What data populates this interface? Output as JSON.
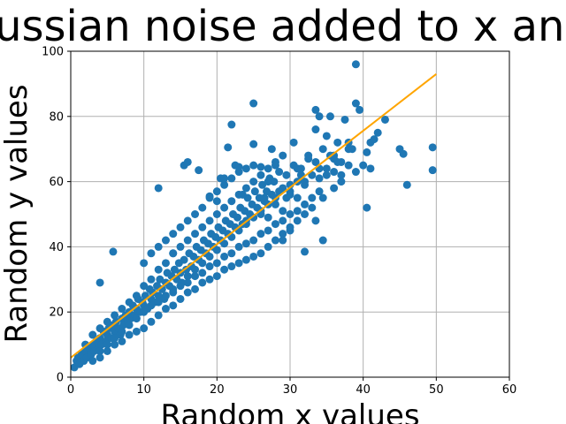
{
  "chart_data": {
    "type": "scatter",
    "title": "Gaussian noise added to x and y",
    "xlabel": "Random x values",
    "ylabel": "Random y values",
    "xlim": [
      0,
      60
    ],
    "ylim": [
      0,
      100
    ],
    "xticks": [
      0,
      10,
      20,
      30,
      40,
      50,
      60
    ],
    "yticks": [
      0,
      20,
      40,
      60,
      80,
      100
    ],
    "grid": true,
    "colors": {
      "points": "#1f77b4",
      "fit_line": "#ffa500",
      "grid": "#b0b0b0"
    },
    "fit_line": {
      "x": [
        0,
        50
      ],
      "y": [
        6,
        93
      ]
    },
    "points": [
      [
        0.5,
        3
      ],
      [
        0.8,
        5
      ],
      [
        1,
        6
      ],
      [
        1.2,
        4
      ],
      [
        1.5,
        7
      ],
      [
        1.8,
        5
      ],
      [
        2,
        8
      ],
      [
        2.2,
        6
      ],
      [
        2.5,
        9
      ],
      [
        2.8,
        7
      ],
      [
        3,
        10
      ],
      [
        3.2,
        8
      ],
      [
        3.5,
        11
      ],
      [
        3.8,
        9
      ],
      [
        4,
        12
      ],
      [
        4.2,
        10
      ],
      [
        4.5,
        14
      ],
      [
        4.8,
        11
      ],
      [
        5,
        13
      ],
      [
        5.2,
        15
      ],
      [
        5.5,
        12
      ],
      [
        5.8,
        16
      ],
      [
        6,
        14
      ],
      [
        6.2,
        17
      ],
      [
        6.5,
        15
      ],
      [
        6.8,
        13
      ],
      [
        7,
        18
      ],
      [
        7.2,
        16
      ],
      [
        7.5,
        19
      ],
      [
        7.8,
        17
      ],
      [
        8,
        20
      ],
      [
        8.2,
        18
      ],
      [
        8.5,
        22
      ],
      [
        8.8,
        19
      ],
      [
        9,
        21
      ],
      [
        9.2,
        24
      ],
      [
        9.5,
        20
      ],
      [
        9.8,
        23
      ],
      [
        10,
        22
      ],
      [
        10.2,
        25
      ],
      [
        10.5,
        21
      ],
      [
        10.8,
        27
      ],
      [
        11,
        24
      ],
      [
        11.2,
        26
      ],
      [
        11.5,
        23
      ],
      [
        11.8,
        28
      ],
      [
        12,
        25
      ],
      [
        12.2,
        30
      ],
      [
        12.5,
        27
      ],
      [
        12.8,
        24
      ],
      [
        13,
        29
      ],
      [
        13.2,
        32
      ],
      [
        13.5,
        28
      ],
      [
        13.8,
        31
      ],
      [
        14,
        27
      ],
      [
        14.2,
        33
      ],
      [
        14.5,
        30
      ],
      [
        14.8,
        35
      ],
      [
        15,
        32
      ],
      [
        15.2,
        29
      ],
      [
        15.5,
        36
      ],
      [
        15.8,
        33
      ],
      [
        16,
        31
      ],
      [
        16.2,
        38
      ],
      [
        16.5,
        34
      ],
      [
        16.8,
        37
      ],
      [
        17,
        33
      ],
      [
        17.2,
        40
      ],
      [
        17.5,
        36
      ],
      [
        17.8,
        39
      ],
      [
        18,
        35
      ],
      [
        18.2,
        42
      ],
      [
        18.5,
        38
      ],
      [
        18.8,
        41
      ],
      [
        19,
        37
      ],
      [
        19.2,
        44
      ],
      [
        19.5,
        40
      ],
      [
        19.8,
        43
      ],
      [
        20,
        39
      ],
      [
        20.2,
        46
      ],
      [
        20.5,
        42
      ],
      [
        20.8,
        45
      ],
      [
        21,
        41
      ],
      [
        21.2,
        48
      ],
      [
        21.5,
        44
      ],
      [
        21.8,
        47
      ],
      [
        22,
        43
      ],
      [
        22.2,
        50
      ],
      [
        22.5,
        46
      ],
      [
        22.8,
        49
      ],
      [
        23,
        45
      ],
      [
        23.2,
        52
      ],
      [
        23.5,
        47
      ],
      [
        23.8,
        51
      ],
      [
        24,
        48
      ],
      [
        24.2,
        55
      ],
      [
        24.5,
        50
      ],
      [
        24.8,
        53
      ],
      [
        25,
        49
      ],
      [
        25.2,
        57
      ],
      [
        25.5,
        52
      ],
      [
        25.8,
        55
      ],
      [
        26,
        51
      ],
      [
        26.2,
        59
      ],
      [
        26.5,
        54
      ],
      [
        26.8,
        57
      ],
      [
        27,
        53
      ],
      [
        27.2,
        61
      ],
      [
        27.5,
        56
      ],
      [
        27.8,
        60
      ],
      [
        28,
        55
      ],
      [
        28.5,
        63
      ],
      [
        29,
        58
      ],
      [
        29.5,
        62
      ],
      [
        30,
        57
      ],
      [
        30.5,
        65
      ],
      [
        31,
        60
      ],
      [
        31.5,
        64
      ],
      [
        32,
        59
      ],
      [
        32.5,
        67
      ],
      [
        33,
        62
      ],
      [
        33.5,
        66
      ],
      [
        34,
        61
      ],
      [
        34.5,
        70
      ],
      [
        35,
        64
      ],
      [
        35.5,
        68
      ],
      [
        36,
        63
      ],
      [
        36.5,
        72
      ],
      [
        37,
        66
      ],
      [
        38,
        70
      ],
      [
        3,
        5
      ],
      [
        4,
        8
      ],
      [
        5,
        10
      ],
      [
        6,
        12
      ],
      [
        7,
        14
      ],
      [
        8,
        16
      ],
      [
        9,
        18
      ],
      [
        10,
        20
      ],
      [
        11,
        22
      ],
      [
        12,
        23
      ],
      [
        13,
        25
      ],
      [
        14,
        26
      ],
      [
        15,
        28
      ],
      [
        16,
        29
      ],
      [
        17,
        31
      ],
      [
        18,
        32
      ],
      [
        19,
        34
      ],
      [
        20,
        35
      ],
      [
        21,
        37
      ],
      [
        22,
        38
      ],
      [
        23,
        40
      ],
      [
        24,
        41
      ],
      [
        25,
        42
      ],
      [
        26,
        44
      ],
      [
        27,
        45
      ],
      [
        28,
        47
      ],
      [
        29,
        48
      ],
      [
        30,
        50
      ],
      [
        31,
        51
      ],
      [
        32,
        53
      ],
      [
        2,
        10
      ],
      [
        3,
        13
      ],
      [
        4,
        15
      ],
      [
        5,
        17
      ],
      [
        6,
        19
      ],
      [
        7,
        21
      ],
      [
        8,
        23
      ],
      [
        9,
        25
      ],
      [
        10,
        28
      ],
      [
        11,
        30
      ],
      [
        12,
        33
      ],
      [
        13,
        35
      ],
      [
        14,
        38
      ],
      [
        15,
        40
      ],
      [
        16,
        42
      ],
      [
        17,
        44
      ],
      [
        18,
        46
      ],
      [
        19,
        48
      ],
      [
        20,
        50
      ],
      [
        21,
        52
      ],
      [
        22,
        54
      ],
      [
        23,
        56
      ],
      [
        24,
        58
      ],
      [
        25,
        60
      ],
      [
        26,
        62
      ],
      [
        27,
        64
      ],
      [
        28,
        66
      ],
      [
        29,
        68
      ],
      [
        10,
        35
      ],
      [
        11,
        38
      ],
      [
        12,
        40
      ],
      [
        13,
        42
      ],
      [
        14,
        44
      ],
      [
        15,
        46
      ],
      [
        16,
        48
      ],
      [
        17,
        50
      ],
      [
        18,
        52
      ],
      [
        19,
        55
      ],
      [
        20,
        57
      ],
      [
        21,
        59
      ],
      [
        22,
        61
      ],
      [
        23,
        63
      ],
      [
        24,
        64
      ],
      [
        25,
        65
      ],
      [
        5.8,
        38.5
      ],
      [
        4,
        29
      ],
      [
        12,
        58
      ],
      [
        14,
        38
      ],
      [
        15.5,
        65
      ],
      [
        16,
        66
      ],
      [
        17.5,
        63.5
      ],
      [
        19,
        55.5
      ],
      [
        20,
        54
      ],
      [
        20.5,
        61
      ],
      [
        21,
        61
      ],
      [
        21.5,
        70.5
      ],
      [
        22,
        77.5
      ],
      [
        22.5,
        65
      ],
      [
        23,
        64.5
      ],
      [
        23.5,
        56
      ],
      [
        25,
        84
      ],
      [
        25,
        71.5
      ],
      [
        26,
        64.5
      ],
      [
        26.5,
        55
      ],
      [
        27,
        60
      ],
      [
        27.5,
        70
      ],
      [
        28,
        65
      ],
      [
        28.5,
        57
      ],
      [
        29,
        42
      ],
      [
        29.5,
        55
      ],
      [
        30,
        59
      ],
      [
        30,
        45
      ],
      [
        30.5,
        72
      ],
      [
        31,
        64
      ],
      [
        31.5,
        62
      ],
      [
        32,
        38.5
      ],
      [
        32.5,
        68
      ],
      [
        33,
        52
      ],
      [
        33.5,
        48
      ],
      [
        33.5,
        76
      ],
      [
        33.5,
        82
      ],
      [
        34,
        80
      ],
      [
        34.5,
        55
      ],
      [
        34.5,
        42
      ],
      [
        35,
        74
      ],
      [
        35.5,
        80
      ],
      [
        36,
        67
      ],
      [
        36.5,
        66
      ],
      [
        37,
        62
      ],
      [
        37.5,
        79
      ],
      [
        38,
        72
      ],
      [
        38.5,
        70
      ],
      [
        39,
        63
      ],
      [
        39,
        96
      ],
      [
        39,
        84
      ],
      [
        39.5,
        82
      ],
      [
        40,
        65
      ],
      [
        40.5,
        52
      ],
      [
        40.5,
        69
      ],
      [
        41,
        64
      ],
      [
        41,
        72
      ],
      [
        41.5,
        73
      ],
      [
        42,
        75
      ],
      [
        43,
        79
      ],
      [
        45,
        70
      ],
      [
        45.5,
        68.5
      ],
      [
        46,
        59
      ],
      [
        49.5,
        63.5
      ],
      [
        49.5,
        70.5
      ],
      [
        38,
        65
      ],
      [
        37,
        60
      ],
      [
        36,
        58
      ],
      [
        35,
        62
      ],
      [
        34,
        57
      ],
      [
        33,
        55
      ],
      [
        32,
        50
      ],
      [
        31,
        48
      ],
      [
        30,
        46
      ],
      [
        29,
        44
      ],
      [
        28,
        42
      ],
      [
        27,
        40
      ],
      [
        26,
        38
      ],
      [
        25,
        37
      ],
      [
        24,
        36
      ],
      [
        23,
        35
      ],
      [
        22,
        34
      ],
      [
        21,
        33
      ],
      [
        20,
        31
      ],
      [
        19,
        30
      ],
      [
        18,
        29
      ],
      [
        17,
        27
      ],
      [
        16,
        26
      ],
      [
        15,
        24
      ],
      [
        14,
        22
      ],
      [
        13,
        21
      ],
      [
        12,
        19
      ],
      [
        11,
        17
      ],
      [
        10,
        15
      ],
      [
        9,
        14
      ],
      [
        8,
        13
      ],
      [
        7,
        11
      ],
      [
        6,
        10
      ],
      [
        5,
        8
      ],
      [
        4,
        6
      ],
      [
        24,
        47
      ],
      [
        26,
        50
      ],
      [
        28,
        53
      ],
      [
        30,
        56
      ],
      [
        32,
        60
      ],
      [
        34,
        64
      ],
      [
        36,
        68
      ],
      [
        27,
        49
      ],
      [
        29,
        51
      ],
      [
        31,
        55
      ]
    ]
  }
}
